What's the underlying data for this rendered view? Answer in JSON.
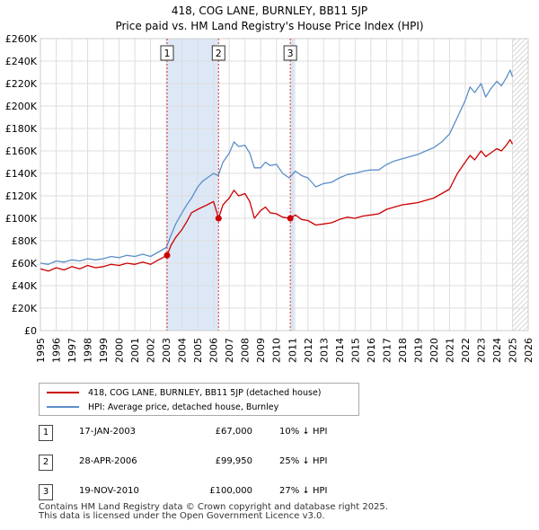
{
  "chart_data": {
    "type": "line",
    "title": "418, COG LANE, BURNLEY, BB11 5JP",
    "subtitle": "Price paid vs. HM Land Registry's House Price Index (HPI)",
    "xlabel": "",
    "ylabel": "",
    "xlim": [
      1995,
      2026
    ],
    "ylim": [
      0,
      260000
    ],
    "x_ticks": [
      1995,
      1996,
      1997,
      1998,
      1999,
      2000,
      2001,
      2002,
      2003,
      2004,
      2005,
      2006,
      2007,
      2008,
      2009,
      2010,
      2011,
      2012,
      2013,
      2014,
      2015,
      2016,
      2017,
      2018,
      2019,
      2020,
      2021,
      2022,
      2023,
      2024,
      2025,
      2026
    ],
    "x_tick_labels": [
      "1995",
      "1996",
      "1997",
      "1998",
      "1999",
      "2000",
      "2001",
      "2002",
      "2003",
      "2004",
      "2005",
      "2006",
      "2007",
      "2008",
      "2009",
      "2010",
      "2011",
      "2012",
      "2013",
      "2014",
      "2015",
      "2016",
      "2017",
      "2018",
      "2019",
      "2020",
      "2021",
      "2022",
      "2023",
      "2024",
      "2025",
      "2026"
    ],
    "y_ticks": [
      0,
      20000,
      40000,
      60000,
      80000,
      100000,
      120000,
      140000,
      160000,
      180000,
      200000,
      220000,
      240000,
      260000
    ],
    "y_tick_labels": [
      "£0",
      "£20K",
      "£40K",
      "£60K",
      "£80K",
      "£100K",
      "£120K",
      "£140K",
      "£160K",
      "£180K",
      "£200K",
      "£220K",
      "£240K",
      "£260K"
    ],
    "grid": true,
    "shaded_periods": [
      [
        2003.05,
        2006.32
      ],
      [
        2010.88,
        2011.2
      ]
    ],
    "hatched_future_from": 2025.0,
    "series": [
      {
        "name": "418, COG LANE, BURNLEY, BB11 5JP (detached house)",
        "color": "#cc0000",
        "x": [
          1995.0,
          1995.5,
          1996.0,
          1996.5,
          1997.0,
          1997.5,
          1998.0,
          1998.5,
          1999.0,
          1999.5,
          2000.0,
          2000.5,
          2001.0,
          2001.5,
          2002.0,
          2002.5,
          2003.05,
          2003.3,
          2003.6,
          2004.0,
          2004.3,
          2004.6,
          2005.0,
          2005.3,
          2005.6,
          2006.0,
          2006.32,
          2006.6,
          2007.0,
          2007.3,
          2007.6,
          2008.0,
          2008.3,
          2008.6,
          2009.0,
          2009.3,
          2009.6,
          2010.0,
          2010.4,
          2010.88,
          2011.2,
          2011.6,
          2012.0,
          2012.5,
          2013.0,
          2013.5,
          2014.0,
          2014.5,
          2015.0,
          2015.5,
          2016.0,
          2016.5,
          2017.0,
          2017.5,
          2018.0,
          2018.5,
          2019.0,
          2019.5,
          2020.0,
          2020.5,
          2021.0,
          2021.5,
          2022.0,
          2022.3,
          2022.6,
          2023.0,
          2023.3,
          2023.6,
          2024.0,
          2024.3,
          2024.6,
          2024.85,
          2025.0
        ],
        "values": [
          55000,
          53000,
          56000,
          54000,
          57000,
          55000,
          58000,
          56000,
          57000,
          59000,
          58000,
          60000,
          59000,
          61000,
          59000,
          63000,
          67000,
          76000,
          83000,
          90000,
          97000,
          105000,
          108000,
          110000,
          112000,
          115000,
          99950,
          112000,
          118000,
          125000,
          120000,
          122000,
          115000,
          100000,
          107000,
          110000,
          105000,
          104000,
          101000,
          100000,
          103000,
          99000,
          98000,
          94000,
          95000,
          96000,
          99000,
          101000,
          100000,
          102000,
          103000,
          104000,
          108000,
          110000,
          112000,
          113000,
          114000,
          116000,
          118000,
          122000,
          126000,
          140000,
          150000,
          156000,
          152000,
          160000,
          155000,
          158000,
          162000,
          160000,
          165000,
          170000,
          166000
        ]
      },
      {
        "name": "HPI: Average price, detached house, Burnley",
        "color": "#5b8fc8",
        "x": [
          1995.0,
          1995.5,
          1996.0,
          1996.5,
          1997.0,
          1997.5,
          1998.0,
          1998.5,
          1999.0,
          1999.5,
          2000.0,
          2000.5,
          2001.0,
          2001.5,
          2002.0,
          2002.5,
          2003.0,
          2003.3,
          2003.6,
          2004.0,
          2004.3,
          2004.6,
          2005.0,
          2005.3,
          2005.6,
          2006.0,
          2006.3,
          2006.6,
          2007.0,
          2007.3,
          2007.6,
          2008.0,
          2008.3,
          2008.6,
          2009.0,
          2009.3,
          2009.6,
          2010.0,
          2010.4,
          2010.8,
          2011.2,
          2011.6,
          2012.0,
          2012.5,
          2013.0,
          2013.5,
          2014.0,
          2014.5,
          2015.0,
          2015.5,
          2016.0,
          2016.5,
          2017.0,
          2017.5,
          2018.0,
          2018.5,
          2019.0,
          2019.5,
          2020.0,
          2020.5,
          2021.0,
          2021.5,
          2022.0,
          2022.3,
          2022.6,
          2023.0,
          2023.3,
          2023.6,
          2024.0,
          2024.3,
          2024.6,
          2024.85,
          2025.0
        ],
        "values": [
          60000,
          59000,
          62000,
          61000,
          63000,
          62000,
          64000,
          63000,
          64000,
          66000,
          65000,
          67000,
          66000,
          68000,
          66000,
          70000,
          74000,
          85000,
          95000,
          105000,
          112000,
          118000,
          128000,
          133000,
          136000,
          140000,
          138000,
          150000,
          158000,
          168000,
          164000,
          165000,
          158000,
          145000,
          145000,
          150000,
          147000,
          148000,
          140000,
          136000,
          142000,
          138000,
          136000,
          128000,
          131000,
          132000,
          136000,
          139000,
          140000,
          142000,
          143000,
          143000,
          148000,
          151000,
          153000,
          155000,
          157000,
          160000,
          163000,
          168000,
          175000,
          190000,
          205000,
          217000,
          212000,
          220000,
          208000,
          215000,
          222000,
          218000,
          225000,
          232000,
          226000
        ]
      }
    ],
    "sales": [
      {
        "num": "1",
        "x": 2003.05,
        "price": 67000
      },
      {
        "num": "2",
        "x": 2006.32,
        "price": 99950
      },
      {
        "num": "3",
        "x": 2010.88,
        "price": 100000
      }
    ]
  },
  "legend": {
    "items": [
      {
        "label": "418, COG LANE, BURNLEY, BB11 5JP (detached house)",
        "color": "#cc0000"
      },
      {
        "label": "HPI: Average price, detached house, Burnley",
        "color": "#5b8fc8"
      }
    ]
  },
  "table": {
    "rows": [
      {
        "num": "1",
        "date": "17-JAN-2003",
        "price": "£67,000",
        "hpi": "10% ↓ HPI"
      },
      {
        "num": "2",
        "date": "28-APR-2006",
        "price": "£99,950",
        "hpi": "25% ↓ HPI"
      },
      {
        "num": "3",
        "date": "19-NOV-2010",
        "price": "£100,000",
        "hpi": "27% ↓ HPI"
      }
    ]
  },
  "footer": {
    "line1": "Contains HM Land Registry data © Crown copyright and database right 2025.",
    "line2": "This data is licensed under the Open Government Licence v3.0."
  }
}
